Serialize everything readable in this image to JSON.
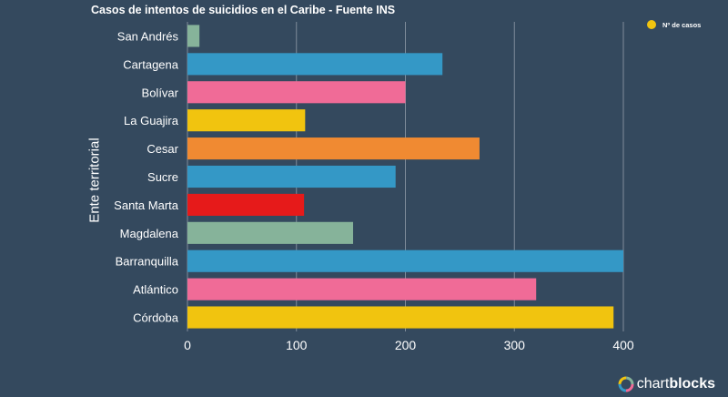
{
  "chart_data": {
    "type": "bar",
    "orientation": "horizontal",
    "title": "Casos de intentos de suicidios en el Caribe - Fuente INS",
    "xlabel": "",
    "ylabel": "Ente territorial",
    "legend": {
      "label": "Nº de casos",
      "position": "top-right",
      "color": "#f1c40f"
    },
    "xlim": [
      0,
      400
    ],
    "xticks": [
      0,
      100,
      200,
      300,
      400
    ],
    "grid": true,
    "categories": [
      "San Andrés",
      "Cartagena",
      "Bolívar",
      "La Guajira",
      "Cesar",
      "Sucre",
      "Santa Marta",
      "Magdalena",
      "Barranquilla",
      "Atlántico",
      "Córdoba"
    ],
    "series": [
      {
        "name": "Nº de casos",
        "values": [
          11,
          234,
          200,
          108,
          268,
          191,
          107,
          152,
          400,
          320,
          391
        ],
        "colors": [
          "#86b39a",
          "#3498c6",
          "#f06b97",
          "#f1c40f",
          "#f08a32",
          "#3498c6",
          "#e61a1a",
          "#86b39a",
          "#3498c6",
          "#f06b97",
          "#f1c40f"
        ]
      }
    ]
  },
  "brand": {
    "name_light": "chart",
    "name_bold": "blocks"
  }
}
